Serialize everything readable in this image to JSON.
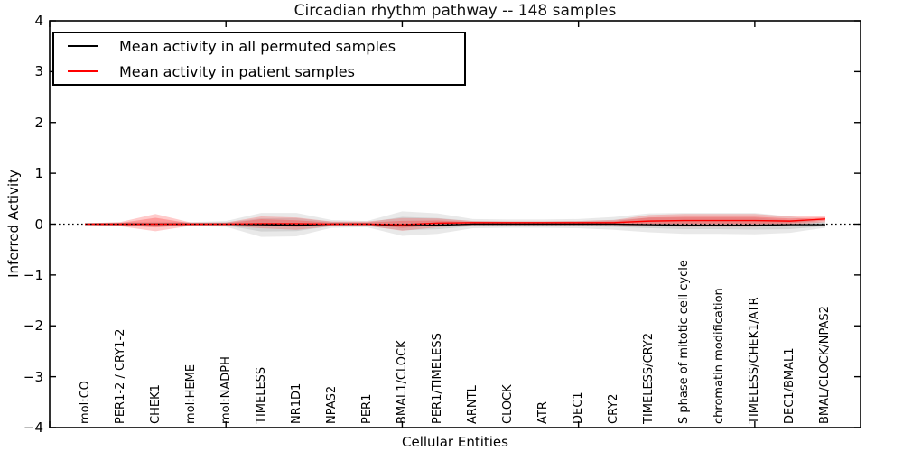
{
  "title": "Circadian rhythm pathway -- 148 samples",
  "axes": {
    "ylabel": "Inferred Activity",
    "xlabel": "Cellular Entities",
    "grid": false,
    "frame": true
  },
  "legend": {
    "position": "upper left",
    "items": [
      {
        "label": "Mean activity in all permuted samples",
        "color": "#000000"
      },
      {
        "label": "Mean activity in patient samples",
        "color": "#ff0000"
      }
    ]
  },
  "chart_data": {
    "type": "area",
    "title": "Circadian rhythm pathway -- 148 samples",
    "xlabel": "Cellular Entities",
    "ylabel": "Inferred Activity",
    "xlim": [
      0,
      23
    ],
    "ylim": [
      -4,
      4
    ],
    "yticks": [
      4,
      3,
      2,
      1,
      0,
      -1,
      -2,
      -3,
      -4
    ],
    "xticks_major": [
      0,
      5,
      10,
      15,
      20
    ],
    "x_positions": [
      1,
      2,
      3,
      4,
      5,
      6,
      7,
      8,
      9,
      10,
      11,
      12,
      13,
      14,
      15,
      16,
      17,
      18,
      19,
      20,
      21,
      22
    ],
    "categories": [
      "mol:CO",
      "PER1-2 / CRY1-2",
      "CHEK1",
      "mol:HEME",
      "mol:NADPH",
      "TIMELESS",
      "NR1D1",
      "NPAS2",
      "PER1",
      "BMAL1/CLOCK",
      "PER1/TIMELESS",
      "ARNTL",
      "CLOCK",
      "ATR",
      "DEC1",
      "CRY2",
      "TIMELESS/CRY2",
      "S phase of mitotic cell cycle",
      "chromatin modification",
      "TIMELESS/CHEK1/ATR",
      "DEC1/BMAL1",
      "BMAL/CLOCK/NPAS2"
    ],
    "baseline": {
      "y": 0,
      "style": "dotted",
      "color": "#000000"
    },
    "series": [
      {
        "name": "Mean activity in all permuted samples",
        "role": "permuted-mean",
        "color": "#000000",
        "values": [
          0,
          0,
          0,
          0,
          0,
          -0.01,
          -0.02,
          0,
          0,
          -0.03,
          -0.02,
          0,
          0,
          0,
          0,
          0,
          -0.01,
          -0.02,
          -0.02,
          -0.02,
          -0.01,
          -0.01
        ]
      },
      {
        "name": "Mean activity in patient samples",
        "role": "patient-mean",
        "color": "#ff0000",
        "values": [
          0,
          0,
          0,
          0,
          0,
          0.01,
          0.01,
          0,
          0,
          -0.01,
          0.02,
          0.03,
          0.03,
          0.03,
          0.03,
          0.03,
          0.06,
          0.07,
          0.07,
          0.07,
          0.06,
          0.1
        ]
      }
    ],
    "bands": [
      {
        "name": "permuted spread",
        "role": "permuted-band",
        "color": "#999999",
        "opacity": 0.22,
        "upper": [
          0.02,
          0.03,
          0.05,
          0.04,
          0.06,
          0.22,
          0.22,
          0.08,
          0.06,
          0.25,
          0.21,
          0.1,
          0.09,
          0.09,
          0.1,
          0.14,
          0.21,
          0.22,
          0.22,
          0.22,
          0.15,
          0.07
        ],
        "lower": [
          -0.02,
          -0.03,
          -0.05,
          -0.04,
          -0.05,
          -0.25,
          -0.24,
          -0.07,
          -0.06,
          -0.23,
          -0.19,
          -0.08,
          -0.07,
          -0.07,
          -0.08,
          -0.11,
          -0.16,
          -0.19,
          -0.19,
          -0.2,
          -0.17,
          -0.07
        ]
      },
      {
        "name": "patient spread",
        "role": "patient-band",
        "color": "#ff3030",
        "opacity": 0.25,
        "upper": [
          0.015,
          0.04,
          0.2,
          0.03,
          0.03,
          0.15,
          0.13,
          0.05,
          0.05,
          0.12,
          0.11,
          0.06,
          0.05,
          0.05,
          0.06,
          0.08,
          0.18,
          0.2,
          0.2,
          0.2,
          0.15,
          0.16
        ],
        "lower": [
          -0.015,
          -0.04,
          -0.14,
          -0.03,
          -0.03,
          -0.08,
          -0.11,
          -0.04,
          -0.03,
          -0.13,
          -0.06,
          -0.02,
          -0.02,
          -0.02,
          -0.02,
          -0.02,
          -0.04,
          -0.05,
          -0.05,
          -0.05,
          -0.02,
          0.04
        ]
      }
    ]
  }
}
